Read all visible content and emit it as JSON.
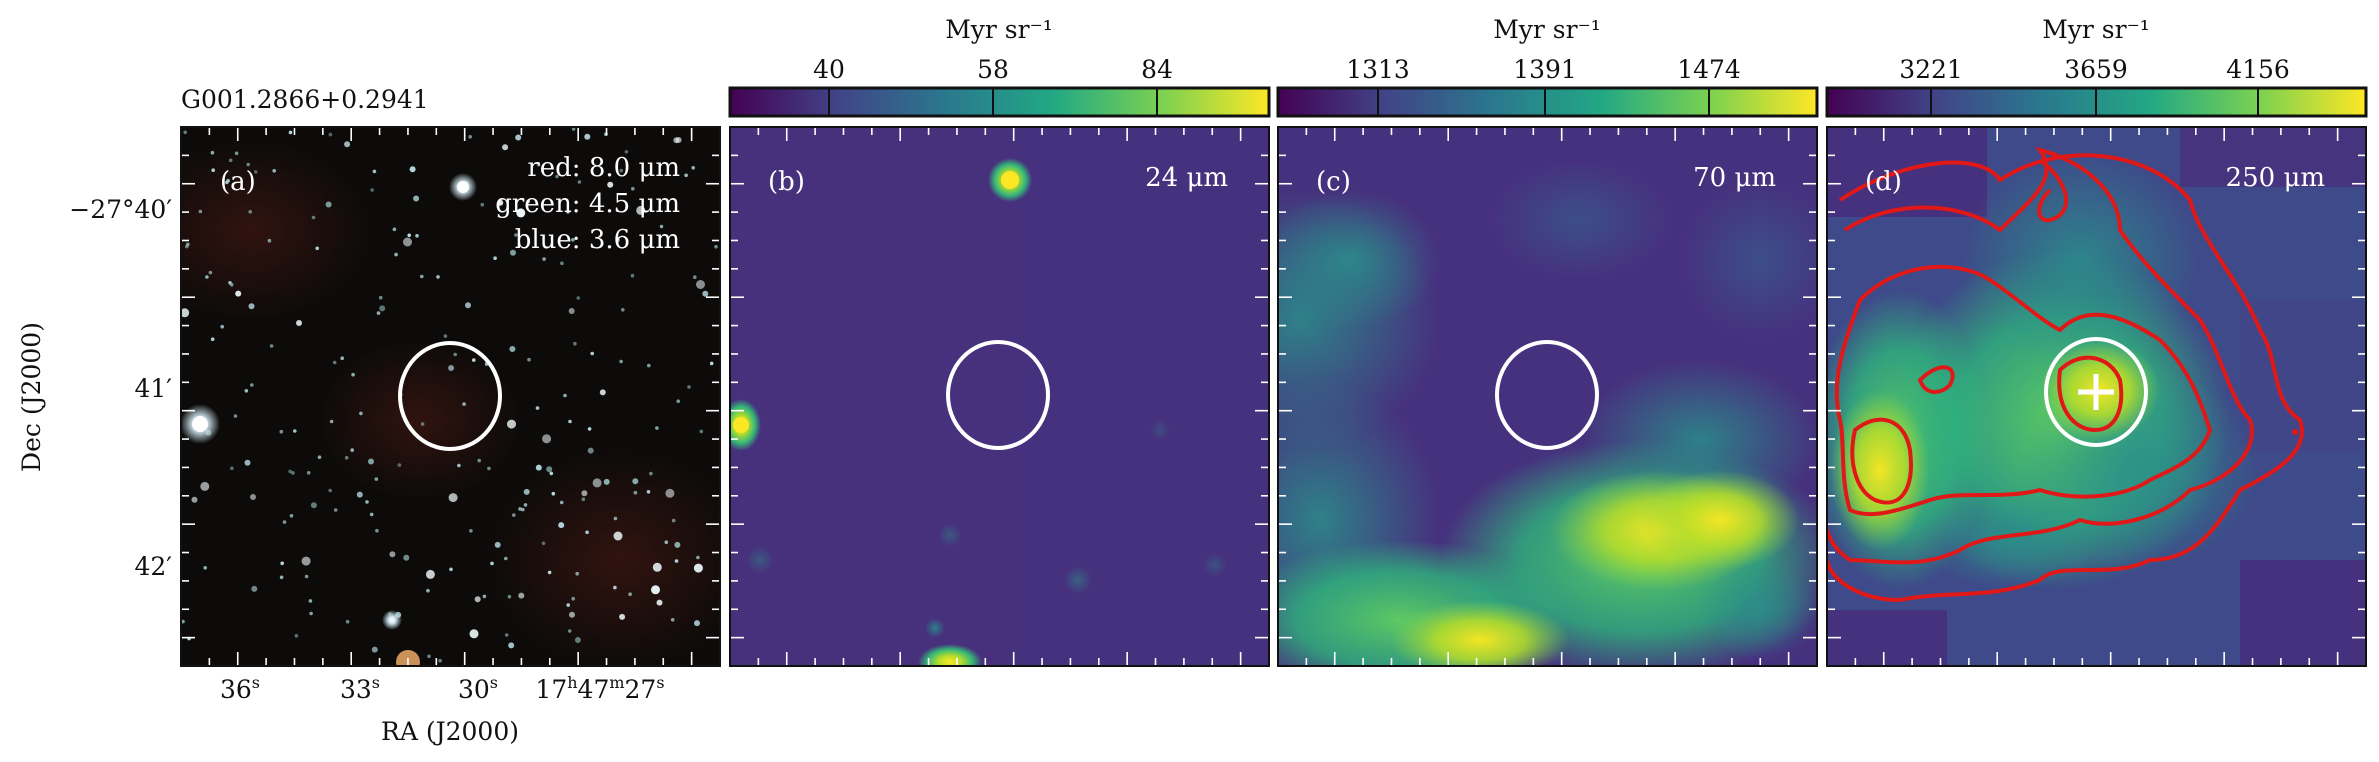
{
  "object_name": "G001.2866+0.2941",
  "axes": {
    "ylabel": "Dec (J2000)",
    "xlabel": "RA (J2000)",
    "dec_ticks": [
      "−27°40′",
      "41′",
      "42′"
    ],
    "ra_ticks": [
      {
        "main": "36",
        "sup": "s"
      },
      {
        "main": "33",
        "sup": "s"
      },
      {
        "main": "30",
        "sup": "s"
      },
      {
        "main": "17",
        "sup": "h",
        "main2": "47",
        "sup2": "m",
        "main3": "27",
        "sup3": "s"
      }
    ]
  },
  "panels": [
    {
      "id": "a",
      "label": "(a)",
      "legend": [
        "red: 8.0 μm",
        "green: 4.5 μm",
        "blue: 3.6 μm"
      ],
      "colormap": "RGB composite (dark starfield)"
    },
    {
      "id": "b",
      "label": "(b)",
      "band": "24 μm",
      "colorbar": {
        "unit": "Myr sr⁻¹",
        "ticks": [
          "40",
          "58",
          "84"
        ],
        "colormap": "viridis"
      }
    },
    {
      "id": "c",
      "label": "(c)",
      "band": "70 μm",
      "colorbar": {
        "unit": "Myr sr⁻¹",
        "ticks": [
          "1313",
          "1391",
          "1474"
        ],
        "colormap": "viridis"
      }
    },
    {
      "id": "d",
      "label": "(d)",
      "band": "250 μm",
      "colorbar": {
        "unit": "Myr sr⁻¹",
        "ticks": [
          "3221",
          "3659",
          "4156"
        ],
        "colormap": "viridis"
      },
      "overlays": [
        "red-contours",
        "white-cross"
      ]
    }
  ],
  "colors": {
    "circle": "#ffffff",
    "contour": "#e01818",
    "viridis_low": "#440154",
    "viridis_mid": "#21918c",
    "viridis_high": "#fde725"
  }
}
